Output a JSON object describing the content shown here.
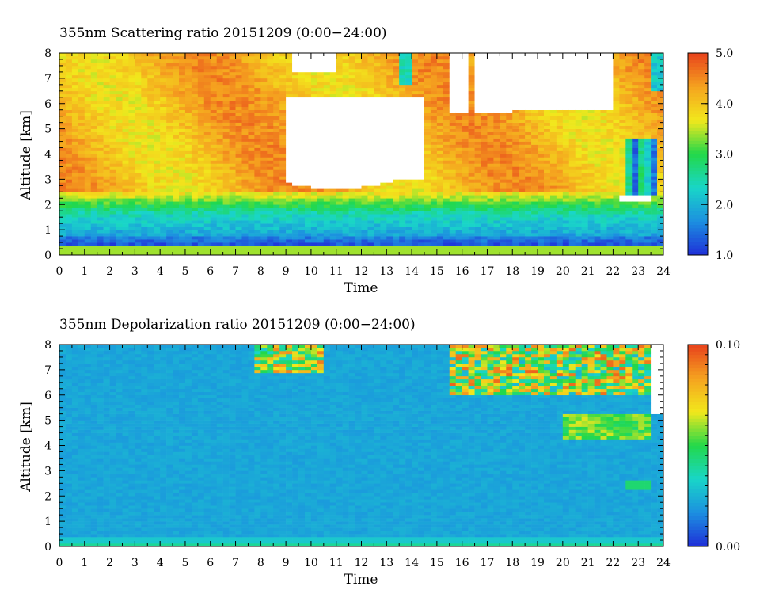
{
  "chart_data": [
    {
      "type": "heatmap",
      "title": "355nm Scattering ratio  20151209 (0:00−24:00)",
      "xlabel": "Time",
      "ylabel": "Altitude [km]",
      "xlim": [
        0,
        24
      ],
      "ylim": [
        0,
        8
      ],
      "x_ticks": [
        "0",
        "1",
        "2",
        "3",
        "4",
        "5",
        "6",
        "7",
        "8",
        "9",
        "10",
        "11",
        "12",
        "13",
        "14",
        "15",
        "16",
        "17",
        "18",
        "19",
        "20",
        "21",
        "22",
        "23",
        "24"
      ],
      "y_ticks": [
        "0",
        "1",
        "2",
        "3",
        "4",
        "5",
        "6",
        "7",
        "8"
      ],
      "colorbar": {
        "range": [
          1.0,
          5.0
        ],
        "tick_labels": [
          "1.0",
          "2.0",
          "3.0",
          "4.0",
          "5.0"
        ]
      },
      "colormap": [
        "#1f2fd8",
        "#1c8fe0",
        "#19d6c8",
        "#22d84a",
        "#f2e81c",
        "#f5a21f",
        "#e8421c"
      ],
      "missing_color": "#ffffff"
    },
    {
      "type": "heatmap",
      "title": "355nm Depolarization ratio  20151209 (0:00−24:00)",
      "xlabel": "Time",
      "ylabel": "Altitude [km]",
      "xlim": [
        0,
        24
      ],
      "ylim": [
        0,
        8
      ],
      "x_ticks": [
        "0",
        "1",
        "2",
        "3",
        "4",
        "5",
        "6",
        "7",
        "8",
        "9",
        "10",
        "11",
        "12",
        "13",
        "14",
        "15",
        "16",
        "17",
        "18",
        "19",
        "20",
        "21",
        "22",
        "23",
        "24"
      ],
      "y_ticks": [
        "0",
        "1",
        "2",
        "3",
        "4",
        "5",
        "6",
        "7",
        "8"
      ],
      "colorbar": {
        "range": [
          0.0,
          0.1
        ],
        "tick_labels": [
          "0.00",
          "0.10"
        ]
      },
      "colormap": [
        "#1f2fd8",
        "#1c8fe0",
        "#19d6c8",
        "#22d84a",
        "#f2e81c",
        "#f5a21f",
        "#e8421c"
      ],
      "missing_color": "#ffffff"
    }
  ]
}
